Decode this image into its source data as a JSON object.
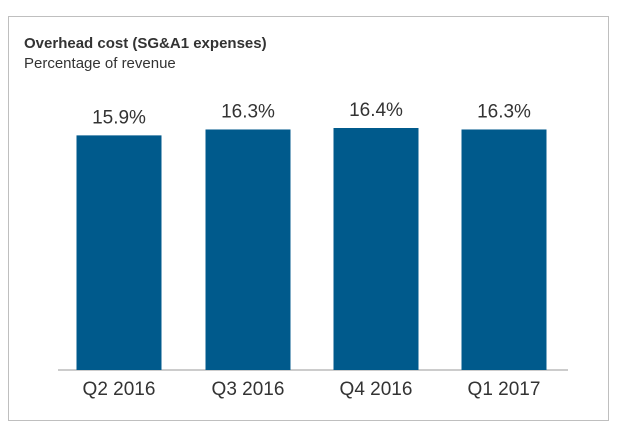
{
  "chart_data": {
    "type": "bar",
    "title": "Overhead cost (SG&A1 expenses)",
    "subtitle": "Percentage of revenue",
    "categories": [
      "Q2 2016",
      "Q3 2016",
      "Q4 2016",
      "Q1 2017"
    ],
    "values": [
      15.9,
      16.3,
      16.4,
      16.3
    ],
    "value_labels": [
      "15.9%",
      "16.3%",
      "16.4%",
      "16.3%"
    ],
    "unit": "%",
    "xlabel": "",
    "ylabel": "",
    "grid": false,
    "legend": "none",
    "bar_color": "#005a8c",
    "text_color": "#333333"
  }
}
